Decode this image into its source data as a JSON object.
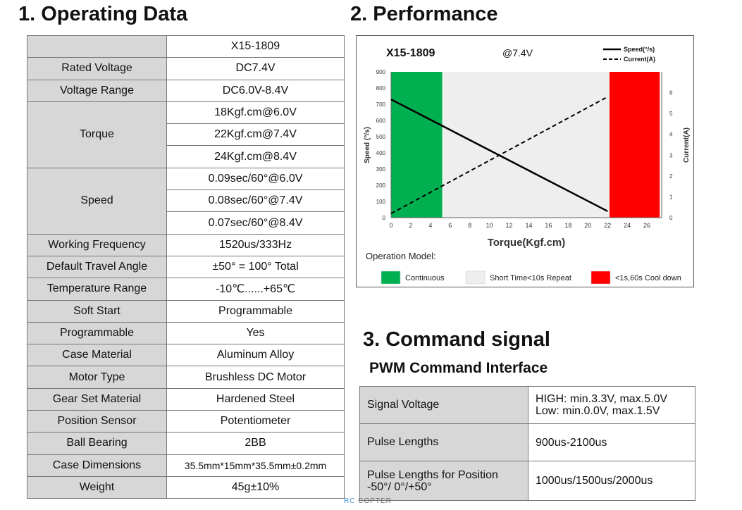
{
  "sections": {
    "operating_title": "1. Operating Data",
    "performance_title": "2. Performance",
    "command_title": "3. Command signal",
    "command_subtitle": "PWM Command Interface"
  },
  "spec_table": {
    "header": "X15-1809",
    "rated_voltage": {
      "label": "Rated Voltage",
      "value": "DC7.4V"
    },
    "voltage_range": {
      "label": "Voltage Range",
      "value": "DC6.0V-8.4V"
    },
    "torque": {
      "label": "Torque",
      "values": [
        "18Kgf.cm@6.0V",
        "22Kgf.cm@7.4V",
        "24Kgf.cm@8.4V"
      ]
    },
    "speed": {
      "label": "Speed",
      "values": [
        "0.09sec/60°@6.0V",
        "0.08sec/60°@7.4V",
        "0.07sec/60°@8.4V"
      ]
    },
    "rows": [
      {
        "label": "Working Frequency",
        "value": "1520us/333Hz"
      },
      {
        "label": "Default Travel Angle",
        "value": "±50° = 100° Total"
      },
      {
        "label": "Temperature Range",
        "value": "-10℃......+65℃"
      },
      {
        "label": "Soft Start",
        "value": "Programmable"
      },
      {
        "label": "Programmable",
        "value": "Yes"
      },
      {
        "label": "Case Material",
        "value": "Aluminum Alloy"
      },
      {
        "label": "Motor Type",
        "value": "Brushless DC Motor"
      },
      {
        "label": "Gear Set Material",
        "value": "Hardened Steel"
      },
      {
        "label": "Position Sensor",
        "value": "Potentiometer"
      },
      {
        "label": "Ball Bearing",
        "value": "2BB"
      },
      {
        "label": "Case Dimensions",
        "value": "35.5mm*15mm*35.5mm±0.2mm"
      },
      {
        "label": "Weight",
        "value": "45g±10%"
      }
    ]
  },
  "command_table": [
    {
      "label": "Signal Voltage",
      "value_lines": [
        "HIGH: min.3.3V, max.5.0V",
        "Low: min.0.0V, max.1.5V"
      ]
    },
    {
      "label": "Pulse Lengths",
      "value_lines": [
        "900us-2100us"
      ]
    },
    {
      "label_lines": [
        "Pulse Lengths for Position",
        "-50°/ 0°/+50°"
      ],
      "value_lines": [
        "1000us/1500us/2000us"
      ]
    }
  ],
  "watermark": {
    "part1": "RC",
    "part2": "COPTER"
  },
  "chart_data": {
    "type": "line",
    "title": "X15-1809",
    "subtitle": "@7.4V",
    "xlabel": "Torque(Kgf.cm)",
    "ylabel": "Speed (°/s)",
    "y2label": "Current(A)",
    "xlim": [
      0,
      27.5
    ],
    "ylim": [
      0,
      900
    ],
    "y2lim": [
      0,
      7
    ],
    "xticks": [
      0,
      2,
      4,
      6,
      8,
      10,
      12,
      14,
      16,
      18,
      20,
      22,
      24,
      26
    ],
    "yticks": [
      0,
      100,
      200,
      300,
      400,
      500,
      600,
      700,
      800,
      900
    ],
    "y2ticks": [
      0,
      1,
      2,
      3,
      4,
      5,
      6
    ],
    "legend_position": "top-right",
    "series": [
      {
        "name": "Speed(°/s)",
        "axis": "left",
        "style": "solid",
        "x": [
          0,
          22
        ],
        "y": [
          730,
          40
        ]
      },
      {
        "name": "Current(A)",
        "axis": "right",
        "style": "dashed",
        "x": [
          0,
          22
        ],
        "y": [
          0.2,
          5.8
        ]
      }
    ],
    "regions": [
      {
        "name": "Continuous",
        "from": 0,
        "to": 5.2,
        "color": "#00b050"
      },
      {
        "name": "Short Time<10s Repeat",
        "from": 5.2,
        "to": 22.2,
        "color": "#eeeeee"
      },
      {
        "name": "<1s,60s Cool down",
        "from": 22.2,
        "to": 27.3,
        "color": "#ff0000"
      }
    ],
    "operation_model_label": "Operation Model:"
  }
}
